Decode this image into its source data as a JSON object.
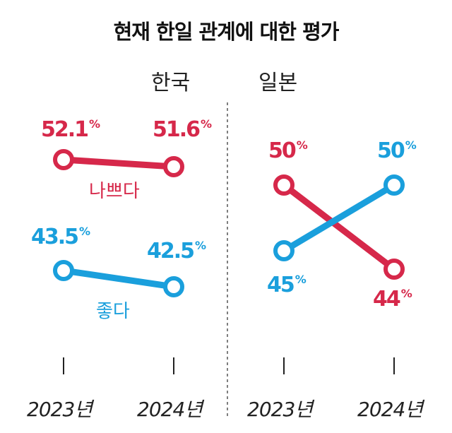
{
  "chart_data": {
    "type": "line",
    "title": "현재 한일 관계에 대한 평가",
    "categories": [
      "2023년",
      "2024년"
    ],
    "panels": [
      {
        "name": "한국",
        "series": [
          {
            "name": "나쁘다",
            "values": [
              52.1,
              51.6
            ],
            "labels": [
              "52.1",
              "51.6"
            ],
            "color": "#d6284a"
          },
          {
            "name": "좋다",
            "values": [
              43.5,
              42.5
            ],
            "labels": [
              "43.5",
              "42.5"
            ],
            "color": "#1a9fdc"
          }
        ]
      },
      {
        "name": "일본",
        "series": [
          {
            "name": "나쁘다",
            "values": [
              50,
              44
            ],
            "labels": [
              "50",
              "44"
            ],
            "color": "#d6284a"
          },
          {
            "name": "좋다",
            "values": [
              45,
              50
            ],
            "labels": [
              "45",
              "50"
            ],
            "color": "#1a9fdc"
          }
        ]
      }
    ],
    "unit": "%"
  }
}
